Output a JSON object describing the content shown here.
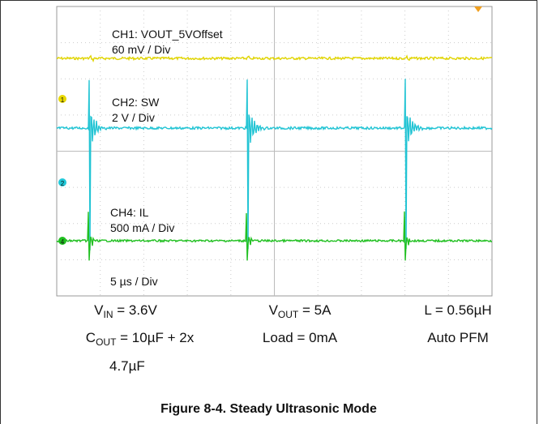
{
  "scope": {
    "channels": [
      {
        "name": "CH1: VOUT_5VOffset",
        "scale": "60 mV / Div"
      },
      {
        "name": "CH2: SW",
        "scale": "2 V / Div"
      },
      {
        "name": "CH4: IL",
        "scale": "500 mA / Div"
      }
    ],
    "markers": [
      "1",
      "2",
      "4"
    ],
    "timebase": "5 µs / Div"
  },
  "conditions": [
    {
      "symbol": "V",
      "subscript": "IN",
      "rest": "= 3.6V"
    },
    {
      "symbol": "V",
      "subscript": "OUT",
      "rest": "= 5A"
    },
    {
      "text": "L = 0.56µH"
    },
    {
      "symbol": "C",
      "subscript": "OUT",
      "rest": "= 10µF + 2x",
      "wrap": "4.7µF"
    },
    {
      "text": "Load = 0mA"
    },
    {
      "text": "Auto PFM"
    }
  ],
  "caption": "Figure 8-4. Steady Ultrasonic Mode"
}
